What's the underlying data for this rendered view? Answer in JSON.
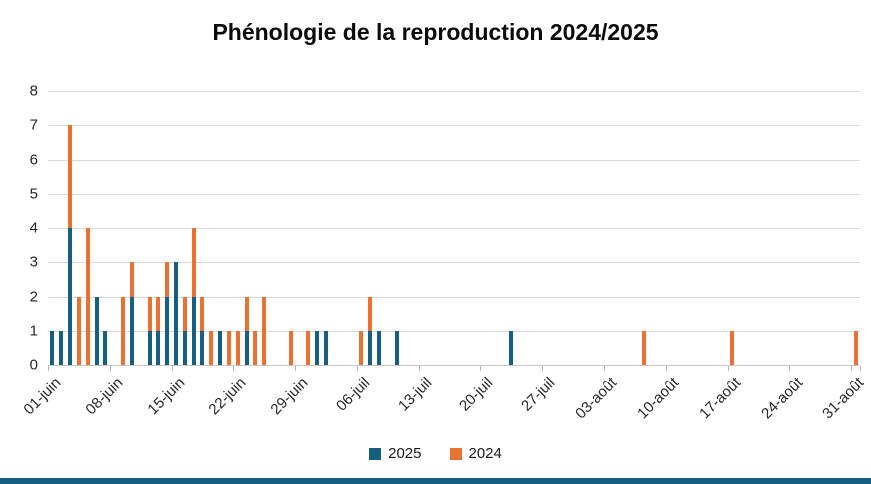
{
  "page": {
    "bottom_strip_color": "#156082",
    "background_color": "#ffffff",
    "gridline_color": "#d9d9d9"
  },
  "chart_data": {
    "type": "bar",
    "stacked": true,
    "title": "Phénologie de la reproduction 2024/2025",
    "xlabel": "",
    "ylabel": "",
    "ylim": [
      0,
      8
    ],
    "yticks": [
      "0",
      "1",
      "2",
      "3",
      "4",
      "5",
      "6",
      "7",
      "8"
    ],
    "grid": true,
    "legend_position": "bottom",
    "days_total": 92,
    "x_ticks": [
      {
        "label": "01-juin",
        "day_index": 0
      },
      {
        "label": "08-juin",
        "day_index": 7
      },
      {
        "label": "15-juin",
        "day_index": 14
      },
      {
        "label": "22-juin",
        "day_index": 21
      },
      {
        "label": "29-juin",
        "day_index": 28
      },
      {
        "label": "06-juil",
        "day_index": 35
      },
      {
        "label": "13-juil",
        "day_index": 42
      },
      {
        "label": "20-juil",
        "day_index": 49
      },
      {
        "label": "27-juil",
        "day_index": 56
      },
      {
        "label": "03-août",
        "day_index": 63
      },
      {
        "label": "10-août",
        "day_index": 70
      },
      {
        "label": "17-août",
        "day_index": 77
      },
      {
        "label": "24-août",
        "day_index": 84
      },
      {
        "label": "31-août",
        "day_index": 91
      }
    ],
    "series": [
      {
        "name": "2025",
        "color": "#156082"
      },
      {
        "name": "2024",
        "color": "#E97132"
      }
    ],
    "bars": [
      {
        "label": "01-juin",
        "day_index": 0,
        "2025": 1,
        "2024": 0
      },
      {
        "label": "02-juin",
        "day_index": 1,
        "2025": 1,
        "2024": 0
      },
      {
        "label": "03-juin",
        "day_index": 2,
        "2025": 4,
        "2024": 3
      },
      {
        "label": "04-juin",
        "day_index": 3,
        "2025": 0,
        "2024": 2
      },
      {
        "label": "05-juin",
        "day_index": 4,
        "2025": 0,
        "2024": 4
      },
      {
        "label": "06-juin",
        "day_index": 5,
        "2025": 2,
        "2024": 0
      },
      {
        "label": "07-juin",
        "day_index": 6,
        "2025": 1,
        "2024": 0
      },
      {
        "label": "09-juin",
        "day_index": 8,
        "2025": 0,
        "2024": 2
      },
      {
        "label": "10-juin",
        "day_index": 9,
        "2025": 2,
        "2024": 1
      },
      {
        "label": "12-juin",
        "day_index": 11,
        "2025": 1,
        "2024": 1
      },
      {
        "label": "13-juin",
        "day_index": 12,
        "2025": 1,
        "2024": 1
      },
      {
        "label": "14-juin",
        "day_index": 13,
        "2025": 2,
        "2024": 1
      },
      {
        "label": "15-juin",
        "day_index": 14,
        "2025": 3,
        "2024": 0
      },
      {
        "label": "16-juin",
        "day_index": 15,
        "2025": 1,
        "2024": 1
      },
      {
        "label": "17-juin",
        "day_index": 16,
        "2025": 2,
        "2024": 2
      },
      {
        "label": "18-juin",
        "day_index": 17,
        "2025": 1,
        "2024": 1
      },
      {
        "label": "19-juin",
        "day_index": 18,
        "2025": 0,
        "2024": 1
      },
      {
        "label": "20-juin",
        "day_index": 19,
        "2025": 1,
        "2024": 0
      },
      {
        "label": "21-juin",
        "day_index": 20,
        "2025": 0,
        "2024": 1
      },
      {
        "label": "22-juin",
        "day_index": 21,
        "2025": 0,
        "2024": 1
      },
      {
        "label": "23-juin",
        "day_index": 22,
        "2025": 1,
        "2024": 1
      },
      {
        "label": "24-juin",
        "day_index": 23,
        "2025": 0,
        "2024": 1
      },
      {
        "label": "25-juin",
        "day_index": 24,
        "2025": 0,
        "2024": 2
      },
      {
        "label": "28-juin",
        "day_index": 27,
        "2025": 0,
        "2024": 1
      },
      {
        "label": "30-juin",
        "day_index": 29,
        "2025": 0,
        "2024": 1
      },
      {
        "label": "01-juil",
        "day_index": 30,
        "2025": 1,
        "2024": 0
      },
      {
        "label": "02-juil",
        "day_index": 31,
        "2025": 1,
        "2024": 0
      },
      {
        "label": "06-juil",
        "day_index": 35,
        "2025": 0,
        "2024": 1
      },
      {
        "label": "07-juil",
        "day_index": 36,
        "2025": 1,
        "2024": 1
      },
      {
        "label": "08-juil",
        "day_index": 37,
        "2025": 1,
        "2024": 0
      },
      {
        "label": "10-juil",
        "day_index": 39,
        "2025": 1,
        "2024": 0
      },
      {
        "label": "23-juil",
        "day_index": 52,
        "2025": 1,
        "2024": 0
      },
      {
        "label": "07-août",
        "day_index": 67,
        "2025": 0,
        "2024": 1
      },
      {
        "label": "17-août",
        "day_index": 77,
        "2025": 0,
        "2024": 1
      },
      {
        "label": "31-août",
        "day_index": 91,
        "2025": 0,
        "2024": 1
      }
    ]
  }
}
